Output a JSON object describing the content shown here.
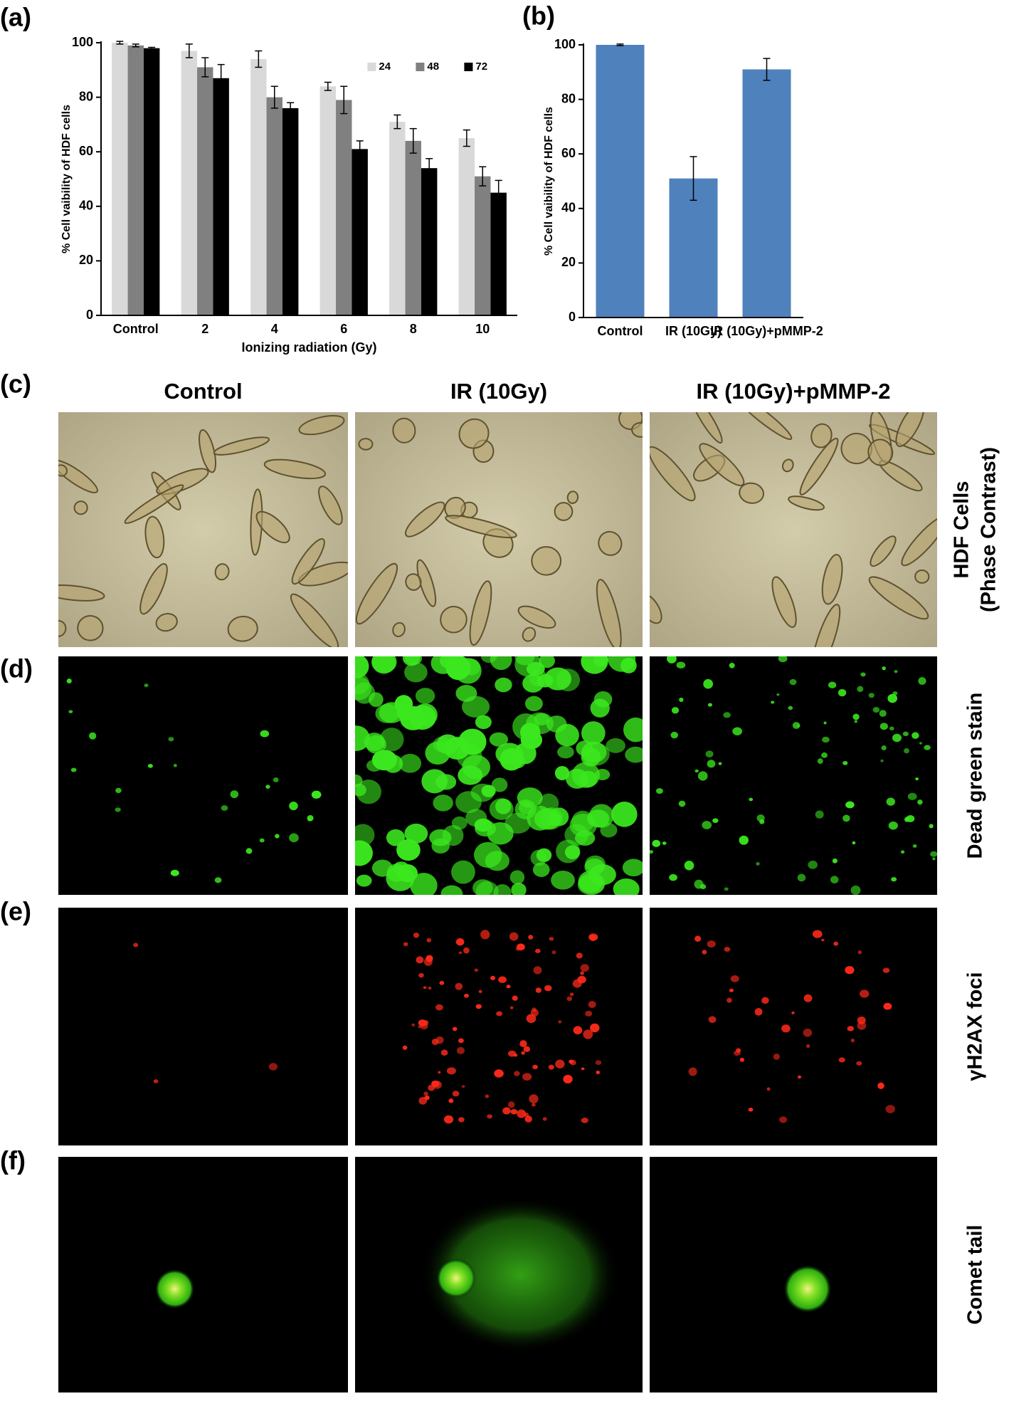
{
  "chart_data": [
    {
      "type": "bar",
      "categories": [
        "Control",
        "2",
        "4",
        "6",
        "8",
        "10"
      ],
      "series": [
        {
          "name": "24",
          "color": "#d9d9d9",
          "values": [
            100,
            97,
            94,
            84,
            71,
            65
          ],
          "errors": [
            0.5,
            2.5,
            3,
            1.5,
            2.5,
            3
          ]
        },
        {
          "name": "48",
          "color": "#808080",
          "values": [
            99,
            91,
            80,
            79,
            64,
            51
          ],
          "errors": [
            0.5,
            3.5,
            4,
            5,
            4.5,
            3.5
          ]
        },
        {
          "name": "72",
          "color": "#000000",
          "values": [
            98,
            87,
            76,
            61,
            54,
            45
          ],
          "errors": [
            0.3,
            5,
            2,
            3,
            3.5,
            4.5
          ]
        }
      ],
      "x_label": "Ionizing radiation (Gy)",
      "y_label": "% Cell vaibility of HDF cells",
      "ylim": [
        0,
        100
      ],
      "yticks": [
        0,
        20,
        40,
        60,
        80,
        100
      ],
      "legend": "top-right",
      "grid": false
    },
    {
      "type": "bar",
      "categories": [
        "Control",
        "IR (10Gy)",
        "IR (10Gy)+pMMP-2"
      ],
      "values": [
        100,
        51,
        91
      ],
      "errors": [
        0.3,
        8,
        4
      ],
      "color": "#4f81bd",
      "y_label": "% Cell vaibility of HDF cells",
      "ylim": [
        0,
        100
      ],
      "yticks": [
        0,
        20,
        40,
        60,
        80,
        100
      ],
      "grid": false
    }
  ],
  "figure": {
    "panel_labels": [
      "(a)",
      "(b)",
      "(c)",
      "(d)",
      "(e)",
      "(f)"
    ],
    "columns": [
      "Control",
      "IR (10Gy)",
      "IR (10Gy)+pMMP-2"
    ],
    "rows": [
      [
        "HDF Cells",
        "(Phase Contrast)"
      ],
      [
        "Dead green stain"
      ],
      [
        "γH2AX foci"
      ],
      [
        "Comet tail"
      ]
    ]
  }
}
